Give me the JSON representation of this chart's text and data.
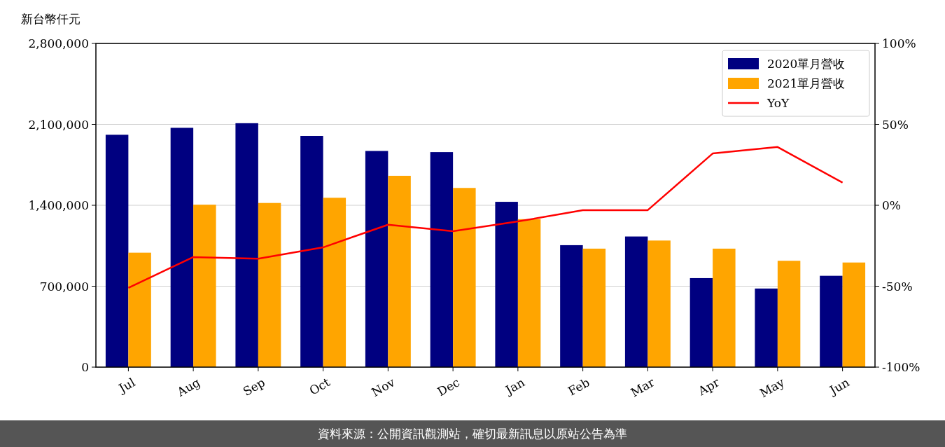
{
  "chart_data": {
    "type": "bar",
    "ylabel": "新台幣仟元",
    "categories": [
      "Jul",
      "Aug",
      "Sep",
      "Oct",
      "Nov",
      "Dec",
      "Jan",
      "Feb",
      "Mar",
      "Apr",
      "May",
      "Jun"
    ],
    "series": [
      {
        "name": "2020單月營收",
        "color": "#000080",
        "values": [
          2010000,
          2070000,
          2110000,
          2000000,
          1870000,
          1860000,
          1430000,
          1055000,
          1130000,
          770000,
          680000,
          790000
        ]
      },
      {
        "name": "2021單月營收",
        "color": "#ffa500",
        "values": [
          990000,
          1405000,
          1420000,
          1465000,
          1655000,
          1550000,
          1280000,
          1025000,
          1095000,
          1025000,
          920000,
          905000
        ]
      },
      {
        "name": "YoY",
        "type": "line",
        "axis": "y2",
        "color": "#ff0000",
        "values": [
          -51,
          -32,
          -33,
          -26,
          -12,
          -16,
          -10,
          -3,
          -3,
          32,
          36,
          14
        ]
      }
    ],
    "ylim": [
      0,
      2800000
    ],
    "yticks": [
      {
        "value": 0,
        "label": "0"
      },
      {
        "value": 700000,
        "label": "700,000"
      },
      {
        "value": 1400000,
        "label": "1,400,000"
      },
      {
        "value": 2100000,
        "label": "2,100,000"
      },
      {
        "value": 2800000,
        "label": "2,800,000"
      }
    ],
    "y2lim": [
      -100,
      100
    ],
    "y2ticks": [
      {
        "value": -100,
        "label": "-100%"
      },
      {
        "value": -50,
        "label": "-50%"
      },
      {
        "value": 0,
        "label": "0%"
      },
      {
        "value": 50,
        "label": "50%"
      },
      {
        "value": 100,
        "label": "100%"
      }
    ],
    "grid": "y",
    "legend": "top right",
    "annotations": [
      "資料來源：公開資訊觀測站，確切最新訊息以原站公告為準"
    ]
  }
}
